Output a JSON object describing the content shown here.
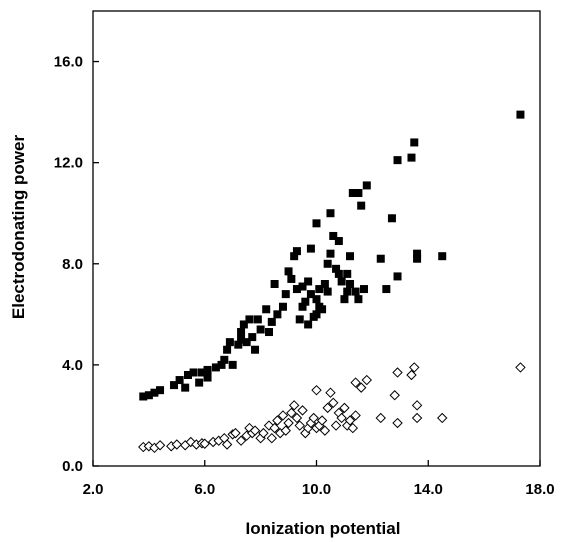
{
  "chart_data": {
    "type": "scatter",
    "title": "",
    "xlabel": "Ionization potential",
    "ylabel": "Electrodonating power",
    "xlim": [
      2.0,
      18.0
    ],
    "ylim": [
      0.0,
      18.0
    ],
    "xticks": [
      2.0,
      6.0,
      10.0,
      14.0,
      18.0
    ],
    "xtick_labels": [
      "2.0",
      "6.0",
      "10.0",
      "14.0",
      "18.0"
    ],
    "yticks": [
      0.0,
      4.0,
      8.0,
      12.0,
      16.0
    ],
    "ytick_labels": [
      "0.0",
      "4.0",
      "8.0",
      "12.0",
      "16.0"
    ],
    "grid": false,
    "legend": "none",
    "series": [
      {
        "marker": "filled-square",
        "color": "#000000",
        "points": [
          [
            3.8,
            2.75
          ],
          [
            4.0,
            2.8
          ],
          [
            4.2,
            2.9
          ],
          [
            4.4,
            3.0
          ],
          [
            4.9,
            3.2
          ],
          [
            5.1,
            3.4
          ],
          [
            5.3,
            3.1
          ],
          [
            5.4,
            3.6
          ],
          [
            5.6,
            3.7
          ],
          [
            5.8,
            3.3
          ],
          [
            5.9,
            3.7
          ],
          [
            6.1,
            3.5
          ],
          [
            6.1,
            3.8
          ],
          [
            6.4,
            3.9
          ],
          [
            6.6,
            4.0
          ],
          [
            6.7,
            4.2
          ],
          [
            6.8,
            4.6
          ],
          [
            6.9,
            4.9
          ],
          [
            7.0,
            4.0
          ],
          [
            7.2,
            4.8
          ],
          [
            7.3,
            5.0
          ],
          [
            7.3,
            5.3
          ],
          [
            7.4,
            5.6
          ],
          [
            7.5,
            4.9
          ],
          [
            7.6,
            5.8
          ],
          [
            7.7,
            5.1
          ],
          [
            7.8,
            4.6
          ],
          [
            7.9,
            5.8
          ],
          [
            8.0,
            5.4
          ],
          [
            8.2,
            6.2
          ],
          [
            8.3,
            5.3
          ],
          [
            8.4,
            5.7
          ],
          [
            8.5,
            7.2
          ],
          [
            8.6,
            6.0
          ],
          [
            8.8,
            6.3
          ],
          [
            8.9,
            6.8
          ],
          [
            9.0,
            7.7
          ],
          [
            9.1,
            7.4
          ],
          [
            9.2,
            8.3
          ],
          [
            9.3,
            8.5
          ],
          [
            9.3,
            7.0
          ],
          [
            9.4,
            5.8
          ],
          [
            9.5,
            6.3
          ],
          [
            9.5,
            7.1
          ],
          [
            9.6,
            6.5
          ],
          [
            9.7,
            5.6
          ],
          [
            9.7,
            7.3
          ],
          [
            9.8,
            6.8
          ],
          [
            9.8,
            8.6
          ],
          [
            9.9,
            5.9
          ],
          [
            10.0,
            6.0
          ],
          [
            10.0,
            6.6
          ],
          [
            10.1,
            7.0
          ],
          [
            10.0,
            9.6
          ],
          [
            10.1,
            6.3
          ],
          [
            10.2,
            6.2
          ],
          [
            10.3,
            7.2
          ],
          [
            10.4,
            6.9
          ],
          [
            10.4,
            8.0
          ],
          [
            10.5,
            8.4
          ],
          [
            10.5,
            10.0
          ],
          [
            10.6,
            9.1
          ],
          [
            10.7,
            7.8
          ],
          [
            10.8,
            8.9
          ],
          [
            10.8,
            7.6
          ],
          [
            10.9,
            7.3
          ],
          [
            11.0,
            6.6
          ],
          [
            11.1,
            6.9
          ],
          [
            11.1,
            7.6
          ],
          [
            11.2,
            8.3
          ],
          [
            11.2,
            7.2
          ],
          [
            11.3,
            10.8
          ],
          [
            11.4,
            6.9
          ],
          [
            11.5,
            6.6
          ],
          [
            11.5,
            10.8
          ],
          [
            11.6,
            10.3
          ],
          [
            11.7,
            7.0
          ],
          [
            11.8,
            11.1
          ],
          [
            12.3,
            8.2
          ],
          [
            12.5,
            7.0
          ],
          [
            12.7,
            9.8
          ],
          [
            12.9,
            7.5
          ],
          [
            12.9,
            12.1
          ],
          [
            13.4,
            12.2
          ],
          [
            13.5,
            12.8
          ],
          [
            13.6,
            8.4
          ],
          [
            13.6,
            8.2
          ],
          [
            14.5,
            8.3
          ],
          [
            17.3,
            13.9
          ]
        ]
      },
      {
        "marker": "open-diamond",
        "color": "#000000",
        "points": [
          [
            3.8,
            0.75
          ],
          [
            4.0,
            0.78
          ],
          [
            4.2,
            0.72
          ],
          [
            4.4,
            0.82
          ],
          [
            4.8,
            0.78
          ],
          [
            5.0,
            0.85
          ],
          [
            5.3,
            0.82
          ],
          [
            5.5,
            0.95
          ],
          [
            5.7,
            0.85
          ],
          [
            5.9,
            0.9
          ],
          [
            6.0,
            0.88
          ],
          [
            6.3,
            0.95
          ],
          [
            6.5,
            1.0
          ],
          [
            6.7,
            1.1
          ],
          [
            6.8,
            0.85
          ],
          [
            7.0,
            1.25
          ],
          [
            7.1,
            1.3
          ],
          [
            7.3,
            1.0
          ],
          [
            7.5,
            1.2
          ],
          [
            7.6,
            1.5
          ],
          [
            7.7,
            1.3
          ],
          [
            7.8,
            1.4
          ],
          [
            8.0,
            1.1
          ],
          [
            8.1,
            1.3
          ],
          [
            8.3,
            1.6
          ],
          [
            8.4,
            1.1
          ],
          [
            8.5,
            1.5
          ],
          [
            8.6,
            1.8
          ],
          [
            8.7,
            1.3
          ],
          [
            8.8,
            2.0
          ],
          [
            8.9,
            1.4
          ],
          [
            9.0,
            1.7
          ],
          [
            9.1,
            2.1
          ],
          [
            9.2,
            2.4
          ],
          [
            9.3,
            1.9
          ],
          [
            9.4,
            1.6
          ],
          [
            9.5,
            2.2
          ],
          [
            9.6,
            1.3
          ],
          [
            9.7,
            1.5
          ],
          [
            9.8,
            1.7
          ],
          [
            9.9,
            1.9
          ],
          [
            10.0,
            1.5
          ],
          [
            10.0,
            3.0
          ],
          [
            10.1,
            1.6
          ],
          [
            10.2,
            1.8
          ],
          [
            10.3,
            1.4
          ],
          [
            10.4,
            2.3
          ],
          [
            10.5,
            2.9
          ],
          [
            10.6,
            2.5
          ],
          [
            10.7,
            1.6
          ],
          [
            10.8,
            2.1
          ],
          [
            10.9,
            1.9
          ],
          [
            11.0,
            2.3
          ],
          [
            11.1,
            1.6
          ],
          [
            11.2,
            1.8
          ],
          [
            11.3,
            1.5
          ],
          [
            11.4,
            2.0
          ],
          [
            11.4,
            3.3
          ],
          [
            11.6,
            3.1
          ],
          [
            11.8,
            3.4
          ],
          [
            12.3,
            1.9
          ],
          [
            12.8,
            2.8
          ],
          [
            12.9,
            1.7
          ],
          [
            12.9,
            3.7
          ],
          [
            13.4,
            3.6
          ],
          [
            13.5,
            3.9
          ],
          [
            13.6,
            2.4
          ],
          [
            13.6,
            1.9
          ],
          [
            14.5,
            1.9
          ],
          [
            17.3,
            3.9
          ]
        ]
      }
    ]
  }
}
